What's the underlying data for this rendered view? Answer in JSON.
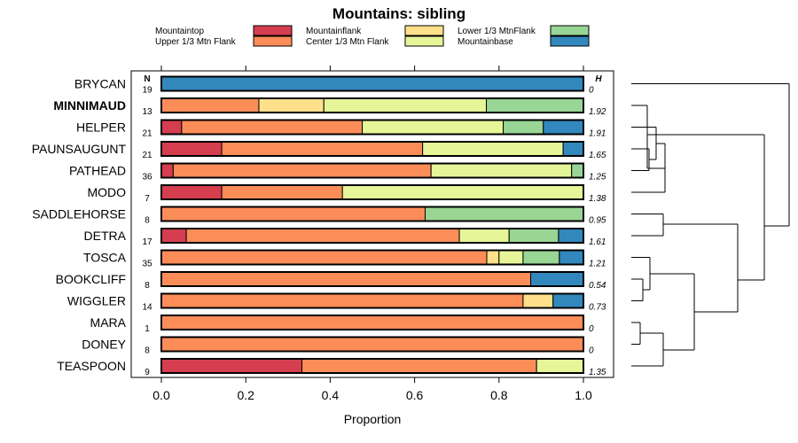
{
  "chart_data": {
    "type": "bar",
    "orientation": "horizontal",
    "stacked": true,
    "title": "Mountains: sibling",
    "xlabel": "Proportion",
    "xlim": [
      0,
      1
    ],
    "xticks": [
      0.0,
      0.2,
      0.4,
      0.6,
      0.8,
      1.0
    ],
    "xtick_labels": [
      "0.0",
      "0.2",
      "0.4",
      "0.6",
      "0.8",
      "1.0"
    ],
    "n_header": "N",
    "h_header": "H",
    "highlight_site": "MINNIMAUD",
    "series": [
      {
        "name": "Mountaintop",
        "color": "#d53e4f"
      },
      {
        "name": "Upper 1/3 Mtn Flank",
        "color": "#fc8d59"
      },
      {
        "name": "Mountainflank",
        "color": "#fee08b"
      },
      {
        "name": "Center 1/3 Mtn Flank",
        "color": "#e6f598"
      },
      {
        "name": "Lower 1/3 MtnFlank",
        "color": "#99d594"
      },
      {
        "name": "Mountainbase",
        "color": "#3288bd"
      }
    ],
    "categories": [
      "BRYCAN",
      "MINNIMAUD",
      "HELPER",
      "PAUNSAUGUNT",
      "PATHEAD",
      "MODO",
      "SADDLEHORSE",
      "DETRA",
      "TOSCA",
      "BOOKCLIFF",
      "WIGGLER",
      "MARA",
      "DONEY",
      "TEASPOON"
    ],
    "rows": [
      {
        "site": "BRYCAN",
        "n": "19",
        "h": "0",
        "values": [
          0,
          0,
          0,
          0,
          0,
          1.0
        ]
      },
      {
        "site": "MINNIMAUD",
        "n": "13",
        "h": "1.92",
        "values": [
          0,
          0.231,
          0.154,
          0.385,
          0.23,
          0
        ]
      },
      {
        "site": "HELPER",
        "n": "21",
        "h": "1.91",
        "values": [
          0.048,
          0.428,
          0,
          0.334,
          0.095,
          0.095
        ]
      },
      {
        "site": "PAUNSAUGUNT",
        "n": "21",
        "h": "1.65",
        "values": [
          0.143,
          0.476,
          0,
          0.333,
          0,
          0.048
        ]
      },
      {
        "site": "PATHEAD",
        "n": "36",
        "h": "1.25",
        "values": [
          0.028,
          0.611,
          0,
          0.333,
          0.028,
          0
        ]
      },
      {
        "site": "MODO",
        "n": "7",
        "h": "1.38",
        "values": [
          0.143,
          0.286,
          0,
          0.571,
          0,
          0
        ]
      },
      {
        "site": "SADDLEHORSE",
        "n": "8",
        "h": "0.95",
        "values": [
          0,
          0.625,
          0,
          0,
          0.375,
          0
        ]
      },
      {
        "site": "DETRA",
        "n": "17",
        "h": "1.61",
        "values": [
          0.059,
          0.647,
          0,
          0.118,
          0.117,
          0.059
        ]
      },
      {
        "site": "TOSCA",
        "n": "35",
        "h": "1.21",
        "values": [
          0,
          0.771,
          0.029,
          0.057,
          0.086,
          0.057
        ]
      },
      {
        "site": "BOOKCLIFF",
        "n": "8",
        "h": "0.54",
        "values": [
          0,
          0.875,
          0,
          0,
          0,
          0.125
        ]
      },
      {
        "site": "WIGGLER",
        "n": "14",
        "h": "0.73",
        "values": [
          0,
          0.857,
          0.071,
          0,
          0,
          0.072
        ]
      },
      {
        "site": "MARA",
        "n": "1",
        "h": "0",
        "values": [
          0,
          1.0,
          0,
          0,
          0,
          0
        ]
      },
      {
        "site": "DONEY",
        "n": "8",
        "h": "0",
        "values": [
          0,
          1.0,
          0,
          0,
          0,
          0
        ]
      },
      {
        "site": "TEASPOON",
        "n": "9",
        "h": "1.35",
        "values": [
          0.333,
          0.556,
          0,
          0.111,
          0,
          0
        ]
      }
    ]
  }
}
